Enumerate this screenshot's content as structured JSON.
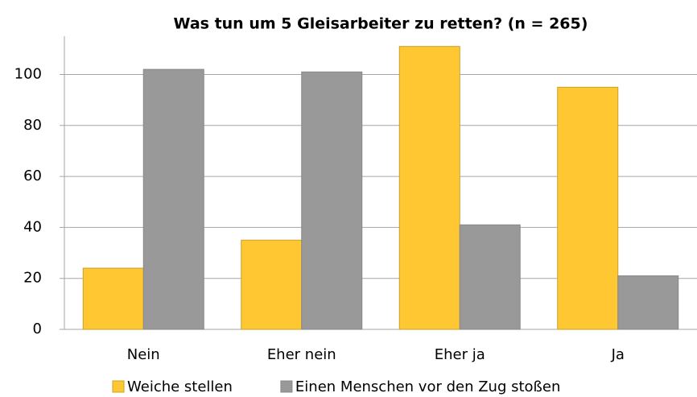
{
  "chart_data": {
    "type": "bar",
    "title": "Was tun um 5 Gleisarbeiter zu retten? (n = 265)",
    "categories": [
      "Nein",
      "Eher nein",
      "Eher ja",
      "Ja"
    ],
    "series": [
      {
        "name": "Weiche stellen",
        "color": "#ffc832",
        "values": [
          24,
          35,
          111,
          95
        ]
      },
      {
        "name": "Einen Menschen vor den Zug stoßen",
        "color": "#999999",
        "values": [
          102,
          101,
          41,
          21
        ]
      }
    ],
    "ylim": [
      0,
      115
    ],
    "yticks": [
      0,
      20,
      40,
      60,
      80,
      100
    ],
    "grid": true,
    "legend": "bottom"
  }
}
